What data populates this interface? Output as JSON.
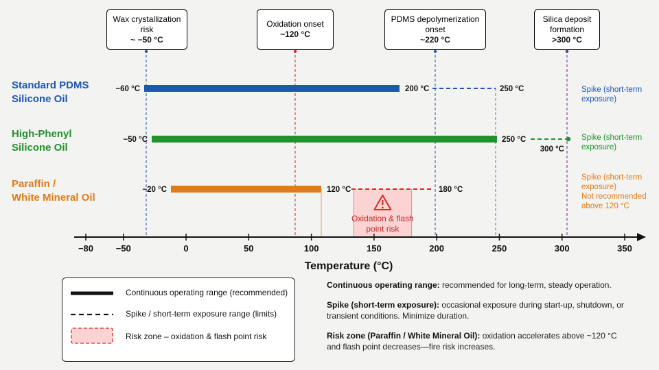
{
  "chart_data": {
    "type": "range",
    "xlabel": "Temperature (°C)",
    "xlim": [
      -80,
      350
    ],
    "x_ticks": [
      "−80",
      "−50",
      "0",
      "50",
      "100",
      "150",
      "200",
      "250",
      "300",
      "350"
    ],
    "x_tick_values": [
      -80,
      -50,
      0,
      50,
      100,
      150,
      200,
      250,
      300,
      350
    ],
    "callouts": [
      {
        "title": "Wax crystallization risk",
        "value_label": "~ −50 °C",
        "x": -50,
        "color": "#1f57b0"
      },
      {
        "title": "Oxidation onset",
        "value_label": "~120 °C",
        "x": 120,
        "color": "#d42a2a"
      },
      {
        "title": "PDMS depolymerization onset",
        "value_label": "~220 °C",
        "x": 220,
        "color": "#1f57b0"
      },
      {
        "title": "Silica deposit formation",
        "value_label": ">300 °C",
        "x": 300,
        "color": "#6b2e8e"
      }
    ],
    "series": [
      {
        "name_lines": [
          "Standard PDMS",
          "Silicone Oil"
        ],
        "color": "#1f57b0",
        "continuous": [
          -60,
          200
        ],
        "spike": [
          200,
          250
        ],
        "labels": {
          "min": "−60 °C",
          "cont_end": "200 °C",
          "spike_end": "250 °C"
        },
        "note": [
          "Spike (short-term",
          "exposure)"
        ]
      },
      {
        "name_lines": [
          "High-Phenyl",
          "Silicone Oil"
        ],
        "color": "#23902e",
        "continuous": [
          -50,
          250
        ],
        "spike": [
          250,
          300
        ],
        "labels": {
          "min": "−50 °C",
          "cont_end": "250 °C",
          "spike_end": "300 °C"
        },
        "note": [
          "Spike (short-term",
          "exposure)"
        ]
      },
      {
        "name_lines": [
          "Paraffin /",
          "White Mineral Oil"
        ],
        "color": "#e37b14",
        "continuous": [
          -20,
          120
        ],
        "spike": [
          120,
          180
        ],
        "labels": {
          "min": "−20 °C",
          "cont_end": "120 °C",
          "spike_end": "180 °C"
        },
        "note": [
          "Spike (short-term",
          "exposure)",
          "Not recommended",
          "above 120 °C"
        ]
      }
    ],
    "risk_zone": {
      "range": [
        120,
        180
      ],
      "label_lines": [
        "Oxidation & flash",
        "point risk"
      ]
    }
  },
  "legend": {
    "items": [
      "Continuous operating range (recommended)",
      "Spike / short-term exposure range (limits)",
      "Risk zone – oxidation & flash point risk"
    ]
  },
  "definitions": [
    {
      "term": "Continuous operating range:",
      "text": "recommended for long-term, steady operation."
    },
    {
      "term": "Spike (short-term exposure):",
      "text": "occasional exposure during start-up, shutdown, or transient conditions. Minimize duration."
    },
    {
      "term": "Risk zone (Paraffin / White Mineral Oil):",
      "text": "oxidation accelerates above ~120 °C and flash point decreases—fire risk increases."
    }
  ]
}
